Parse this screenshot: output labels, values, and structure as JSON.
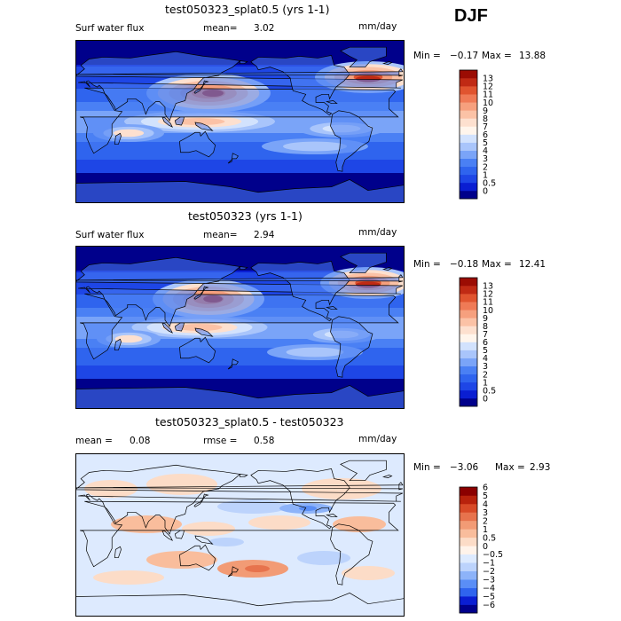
{
  "season": "DJF",
  "colors": {
    "abs": [
      "#00008b",
      "#0a1ed2",
      "#1e46e6",
      "#2f64ee",
      "#4a80f4",
      "#7aa4f8",
      "#a9c5fb",
      "#d2e2fd",
      "#fff5ec",
      "#fde0cf",
      "#fbc2a6",
      "#f6a07e",
      "#ef7a56",
      "#e0542f",
      "#c02a14",
      "#9b0c03"
    ],
    "diff": [
      "#00008b",
      "#0a1ed2",
      "#2f64ee",
      "#5a8ef6",
      "#8db3f9",
      "#bcd3fc",
      "#ddeafe",
      "#fff3ea",
      "#fcdcc7",
      "#f9bd9c",
      "#f29b75",
      "#e7734d",
      "#d84a27",
      "#b8220c",
      "#8b0000"
    ]
  },
  "chart_data": [
    {
      "type": "heatmap",
      "title": "test050323_splat0.5 (yrs 1-1)",
      "variable": "Surf water flux",
      "stat_label": "mean=",
      "stat_value": "3.02",
      "units": "mm/day",
      "min_label": "Min =",
      "min_value": "−0.17",
      "max_label": "Max =",
      "max_value": "13.88",
      "colorbar_levels": [
        "0",
        "0.5",
        "1",
        "2",
        "3",
        "4",
        "5",
        "6",
        "7",
        "8",
        "9",
        "10",
        "11",
        "12",
        "13"
      ]
    },
    {
      "type": "heatmap",
      "title": "test050323 (yrs 1-1)",
      "variable": "Surf water flux",
      "stat_label": "mean=",
      "stat_value": "2.94",
      "units": "mm/day",
      "min_label": "Min =",
      "min_value": "−0.18",
      "max_label": "Max =",
      "max_value": "12.41",
      "colorbar_levels": [
        "0",
        "0.5",
        "1",
        "2",
        "3",
        "4",
        "5",
        "6",
        "7",
        "8",
        "9",
        "10",
        "11",
        "12",
        "13"
      ]
    },
    {
      "type": "heatmap",
      "title": "test050323_splat0.5 - test050323",
      "stat_label": "mean =",
      "stat_value": "0.08",
      "stat2_label": "rmse =",
      "stat2_value": "0.58",
      "units": "mm/day",
      "min_label": "Min =",
      "min_value": "−3.06",
      "max_label": "Max =",
      "max_value": "2.93",
      "colorbar_levels": [
        "−6",
        "−5",
        "−4",
        "−3",
        "−2",
        "−1",
        "−0.5",
        "0",
        "0.5",
        "1",
        "2",
        "3",
        "4",
        "5",
        "6"
      ]
    }
  ]
}
